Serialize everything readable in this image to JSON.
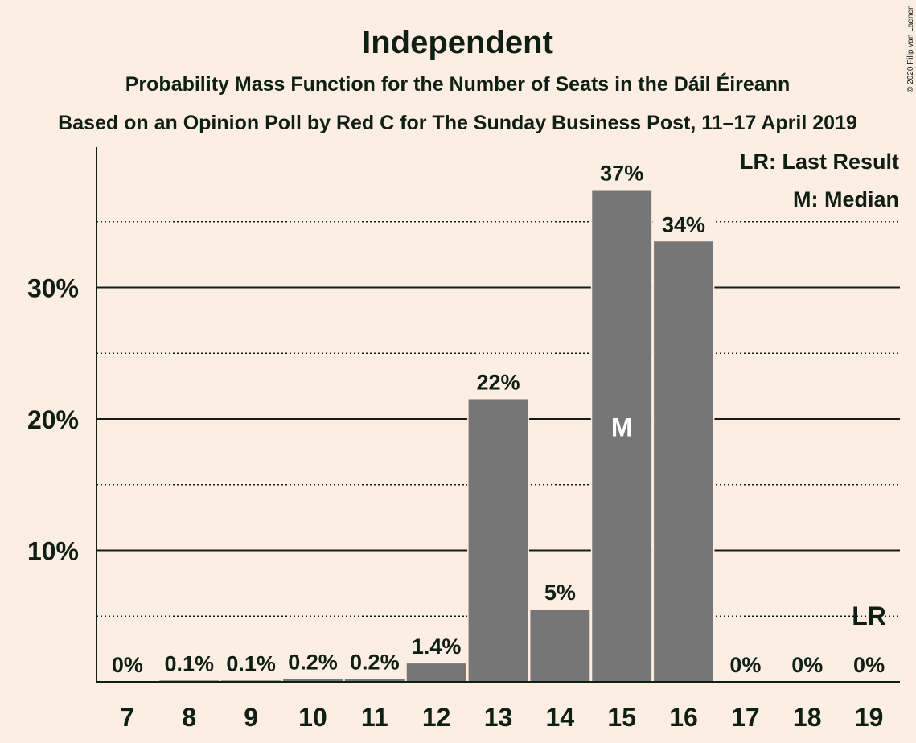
{
  "chart_data": {
    "type": "bar",
    "title": "Independent",
    "subtitle": "Probability Mass Function for the Number of Seats in the Dáil Éireann",
    "subtitle2": "Based on an Opinion Poll by Red C for The Sunday Business Post, 11–17 April 2019",
    "copyright": "© 2020 Filip van Laenen",
    "categories": [
      "7",
      "8",
      "9",
      "10",
      "11",
      "12",
      "13",
      "14",
      "15",
      "16",
      "17",
      "18",
      "19"
    ],
    "values": [
      0,
      0.1,
      0.1,
      0.2,
      0.2,
      1.4,
      21.5,
      5.5,
      37.4,
      33.5,
      0,
      0,
      0
    ],
    "value_labels": [
      "0%",
      "0.1%",
      "0.1%",
      "0.2%",
      "0.2%",
      "1.4%",
      "22%",
      "5%",
      "37%",
      "34%",
      "0%",
      "0%",
      "0%"
    ],
    "ylim": [
      0,
      40
    ],
    "yticks": [
      10,
      20,
      30
    ],
    "ytick_labels": [
      "10%",
      "20%",
      "30%"
    ],
    "minor_gridlines": [
      5,
      15,
      25,
      35
    ],
    "median_category": "15",
    "median_label": "M",
    "last_result_category": "19",
    "last_result_label": "LR",
    "legend": [
      "LR: Last Result",
      "M: Median"
    ],
    "legend_position": "top-right",
    "bar_color": "#767676",
    "background_color": "#fdeee3"
  }
}
